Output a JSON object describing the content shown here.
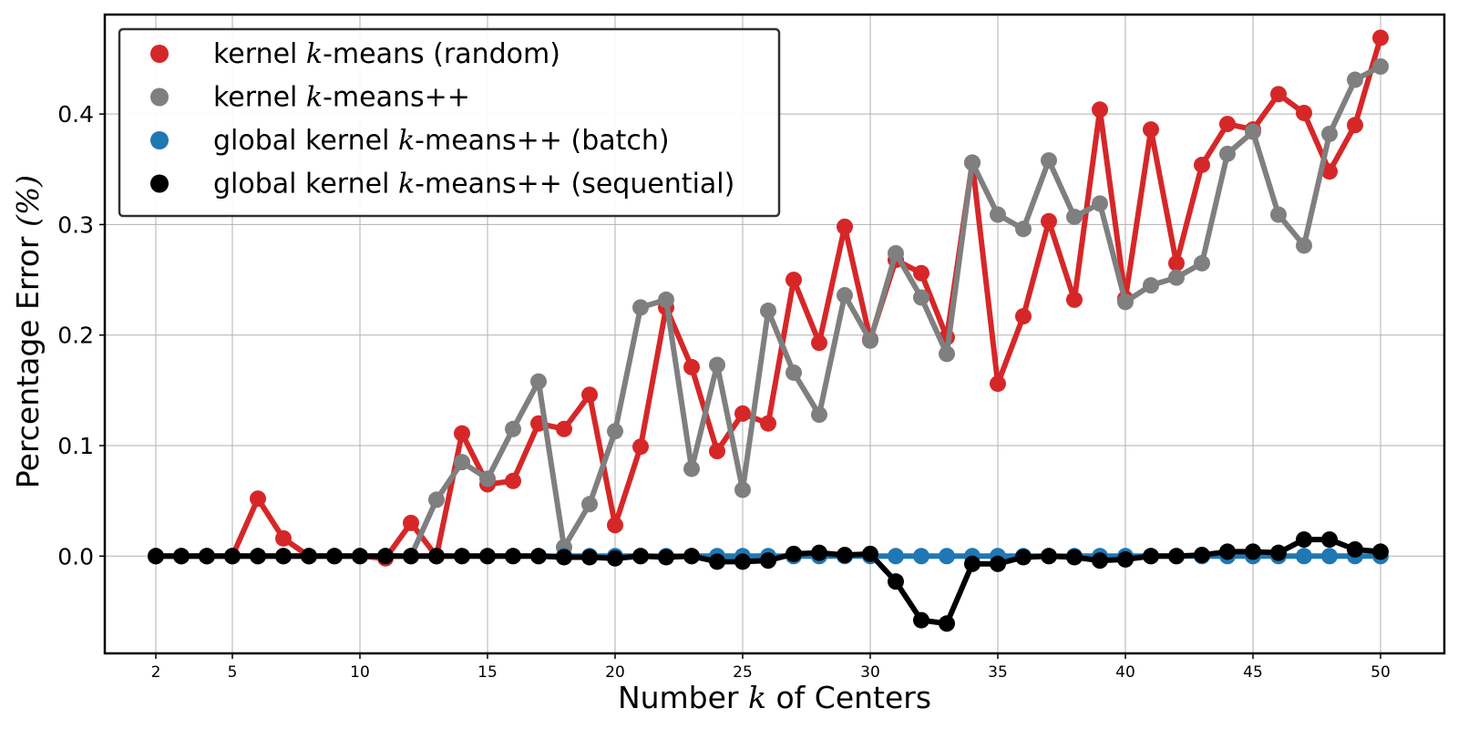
{
  "chart_data": {
    "type": "line",
    "title": "",
    "xlabel": {
      "before": "Number ",
      "var": "k",
      "after": " of Centers"
    },
    "ylabel": {
      "before": "Percentage Error ",
      "var": "(%)",
      "after": ""
    },
    "xlim": [
      0,
      52.5
    ],
    "ylim": [
      -0.088,
      0.49
    ],
    "x_ticks": [
      2,
      5,
      10,
      15,
      20,
      25,
      30,
      35,
      40,
      45,
      50
    ],
    "y_ticks": [
      0.0,
      0.1,
      0.2,
      0.3,
      0.4
    ],
    "y_tick_labels": [
      "0.0",
      "0.1",
      "0.2",
      "0.3",
      "0.4"
    ],
    "grid": true,
    "legend_position": "top-left",
    "x": [
      2,
      3,
      4,
      5,
      6,
      7,
      8,
      9,
      10,
      11,
      12,
      13,
      14,
      15,
      16,
      17,
      18,
      19,
      20,
      21,
      22,
      23,
      24,
      25,
      26,
      27,
      28,
      29,
      30,
      31,
      32,
      33,
      34,
      35,
      36,
      37,
      38,
      39,
      40,
      41,
      42,
      43,
      44,
      45,
      46,
      47,
      48,
      49,
      50
    ],
    "series": [
      {
        "name": "kernel k-means (random)",
        "legend": {
          "before": "kernel ",
          "var": "k",
          "after": "-means (random)"
        },
        "color": "#d62728",
        "values": [
          0,
          0,
          0,
          0,
          0.052,
          0.016,
          0,
          0,
          0,
          -0.002,
          0.03,
          0,
          0.111,
          0.065,
          0.068,
          0.12,
          0.115,
          0.146,
          0.028,
          0.099,
          0.225,
          0.171,
          0.095,
          0.129,
          0.12,
          0.25,
          0.193,
          0.298,
          0.196,
          0.268,
          0.256,
          0.198,
          0.356,
          0.156,
          0.217,
          0.303,
          0.232,
          0.404,
          0.233,
          0.386,
          0.265,
          0.354,
          0.391,
          0.386,
          0.418,
          0.401,
          0.348,
          0.39,
          0.469
        ]
      },
      {
        "name": "kernel k-means++",
        "legend": {
          "before": "kernel ",
          "var": "k",
          "after": "-means++"
        },
        "color": "#7f7f7f",
        "values": [
          0,
          0,
          0,
          0,
          0,
          0,
          0,
          0,
          0,
          0,
          0,
          0.051,
          0.085,
          0.07,
          0.115,
          0.158,
          0.008,
          0.047,
          0.113,
          0.225,
          0.232,
          0.079,
          0.173,
          0.06,
          0.222,
          0.166,
          0.128,
          0.236,
          0.195,
          0.274,
          0.234,
          0.183,
          0.356,
          0.309,
          0.296,
          0.358,
          0.307,
          0.319,
          0.23,
          0.245,
          0.252,
          0.265,
          0.364,
          0.384,
          0.309,
          0.281,
          0.382,
          0.431,
          0.443
        ]
      },
      {
        "name": "global kernel k-means++ (batch)",
        "legend": {
          "before": "global kernel ",
          "var": "k",
          "after": "-means++ (batch)"
        },
        "color": "#1f77b4",
        "values": [
          0,
          0,
          0,
          0,
          0,
          0,
          0,
          0,
          0,
          0,
          0,
          0,
          0,
          0,
          0,
          0,
          0,
          0,
          0,
          0,
          0,
          0,
          0,
          0,
          0,
          0,
          0,
          0,
          0,
          0,
          0,
          0,
          0,
          0,
          0,
          0,
          0,
          0,
          0,
          0,
          0,
          0,
          0,
          0,
          0,
          0,
          0,
          0,
          0
        ]
      },
      {
        "name": "global kernel k-means++ (sequential)",
        "legend": {
          "before": "global kernel ",
          "var": "k",
          "after": "-means++ (sequential)"
        },
        "color": "#000000",
        "values": [
          0,
          0,
          0,
          0,
          0,
          0,
          0,
          0,
          0,
          0,
          0,
          0,
          0,
          0,
          0,
          0,
          -0.001,
          -0.001,
          -0.002,
          0,
          -0.001,
          0,
          -0.005,
          -0.005,
          -0.004,
          0.002,
          0.003,
          0.001,
          0.002,
          -0.023,
          -0.058,
          -0.061,
          -0.007,
          -0.007,
          -0.001,
          0,
          -0.001,
          -0.004,
          -0.003,
          0,
          0,
          0.001,
          0.004,
          0.004,
          0.003,
          0.015,
          0.015,
          0.006,
          0.004
        ]
      }
    ]
  }
}
